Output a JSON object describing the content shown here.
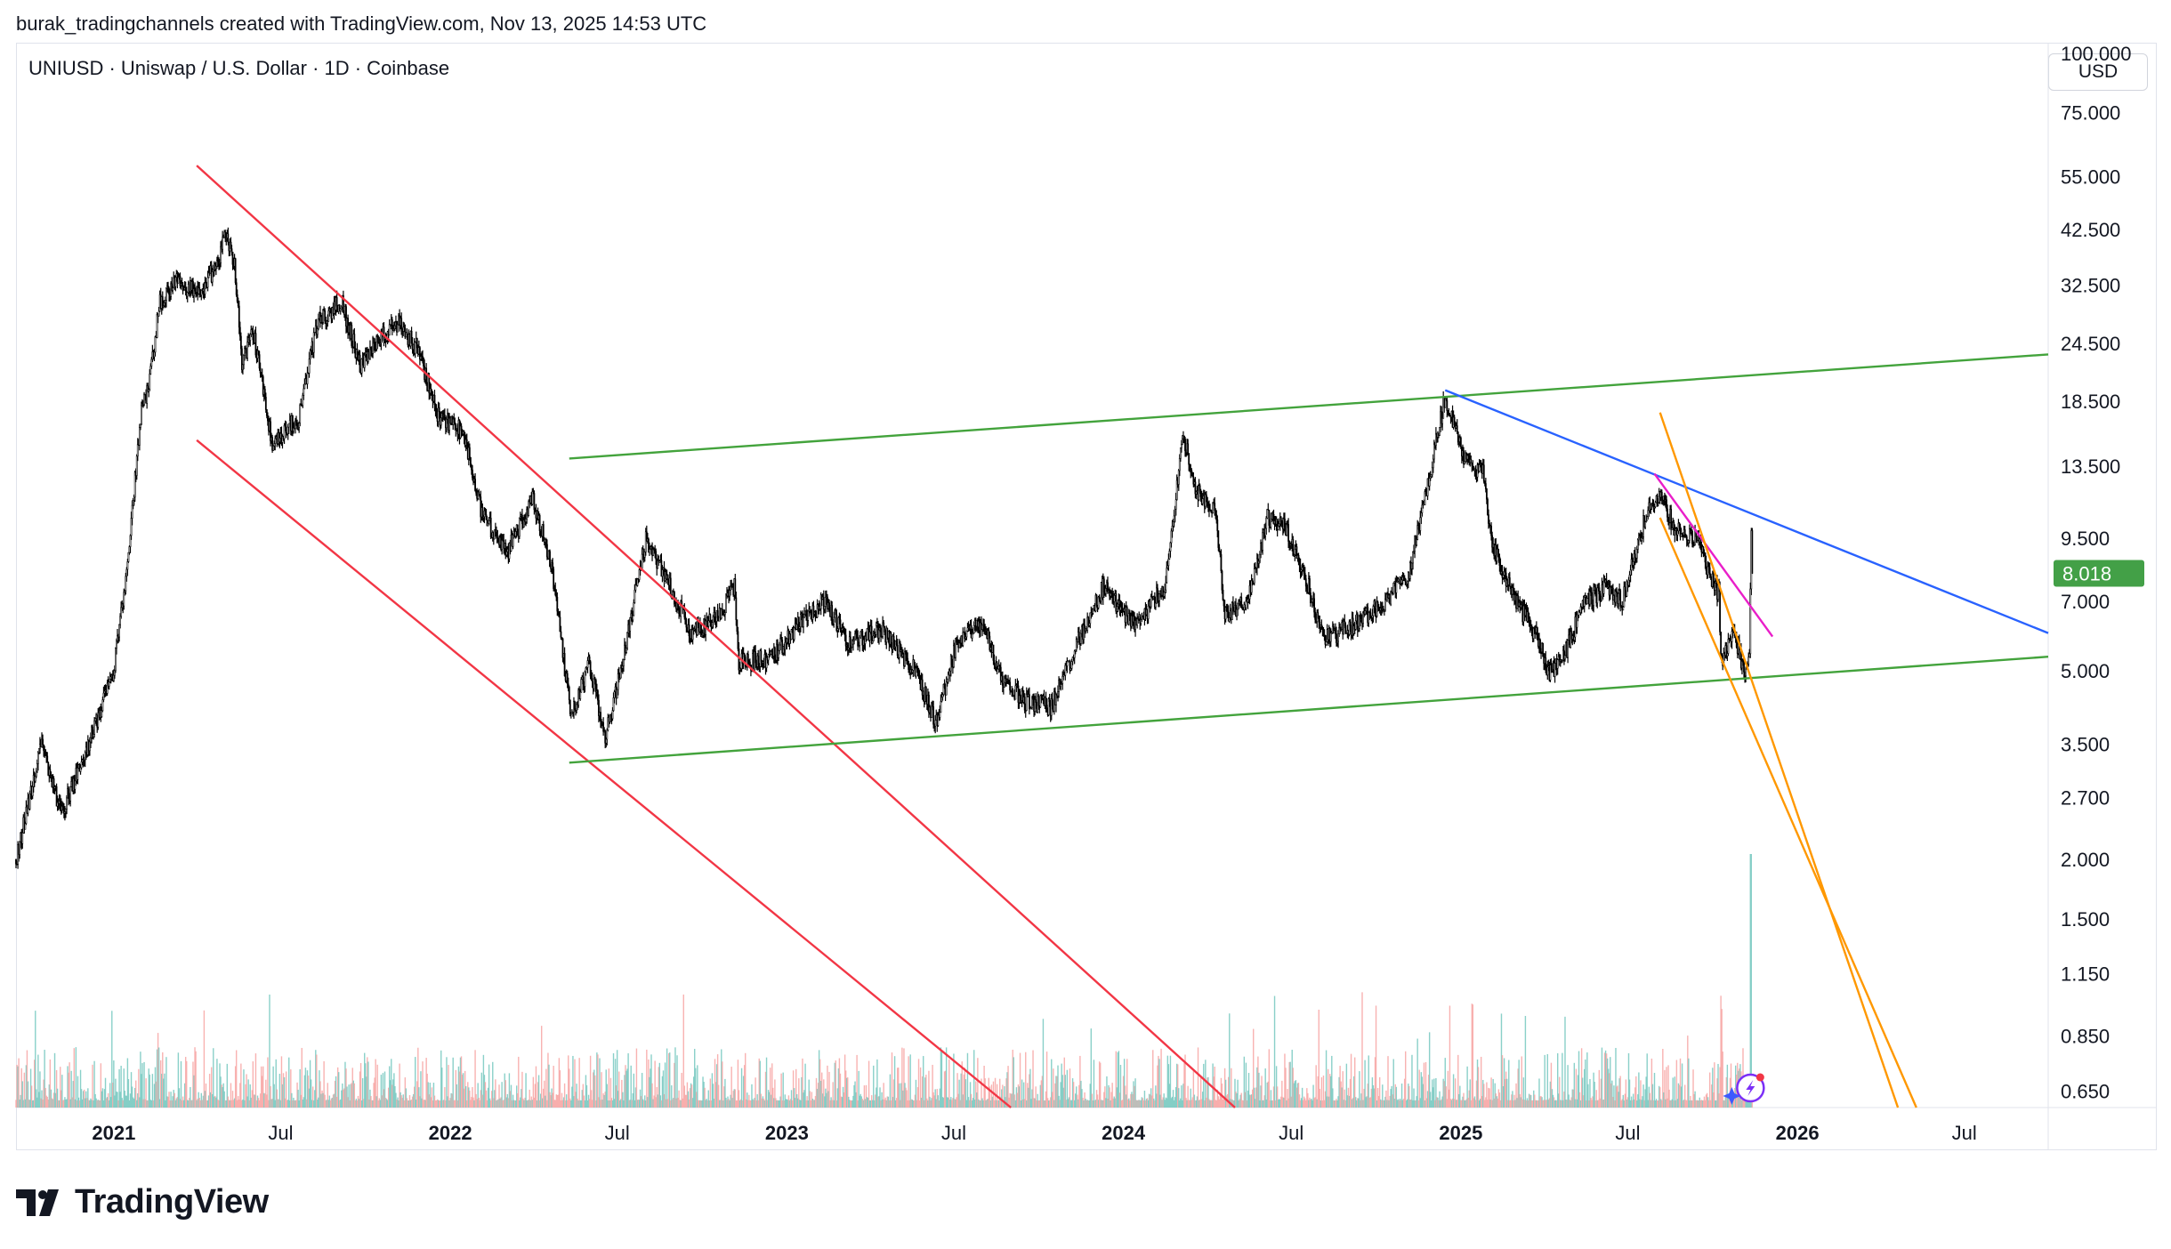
{
  "header": {
    "text": "burak_tradingchannels created with TradingView.com, Nov 13, 2025 14:53 UTC"
  },
  "symbol": {
    "text": "UNIUSD · Uniswap / U.S. Dollar · 1D · Coinbase"
  },
  "currency_button": {
    "label": "USD"
  },
  "brand": {
    "label": "TradingView",
    "icon": "tradingview-logo-icon"
  },
  "colors": {
    "candles": "#000000",
    "grid": "#f0f3fa",
    "red_channel": "#f23645",
    "green_channel": "#43a33c",
    "blue_line": "#2962ff",
    "magenta_line": "#e91ec9",
    "orange_channel": "#ff9800",
    "volume_up": "#76c8c0",
    "volume_down": "#f7a5a3",
    "last_price_bg": "#43a047"
  },
  "chart_data": {
    "type": "candlestick",
    "title": "UNIUSD · Uniswap / U.S. Dollar · 1D · Coinbase",
    "scale": "log",
    "ylim": [
      0.6,
      100
    ],
    "xlim": [
      "2020-09-17",
      "2026-09-30"
    ],
    "y_ticks": [
      "100.000",
      "75.000",
      "55.000",
      "42.500",
      "32.500",
      "24.500",
      "18.500",
      "13.500",
      "9.500",
      "7.000",
      "5.000",
      "3.500",
      "2.700",
      "2.000",
      "1.500",
      "1.150",
      "0.850",
      "0.650"
    ],
    "x_ticks": [
      {
        "label": "2021",
        "date": "2021-01-01",
        "bold": true
      },
      {
        "label": "Jul",
        "date": "2021-07-01",
        "bold": false
      },
      {
        "label": "2022",
        "date": "2022-01-01",
        "bold": true
      },
      {
        "label": "Jul",
        "date": "2022-07-01",
        "bold": false
      },
      {
        "label": "2023",
        "date": "2023-01-01",
        "bold": true
      },
      {
        "label": "Jul",
        "date": "2023-07-01",
        "bold": false
      },
      {
        "label": "2024",
        "date": "2024-01-01",
        "bold": true
      },
      {
        "label": "Jul",
        "date": "2024-07-01",
        "bold": false
      },
      {
        "label": "2025",
        "date": "2025-01-01",
        "bold": true
      },
      {
        "label": "Jul",
        "date": "2025-07-01",
        "bold": false
      },
      {
        "label": "2026",
        "date": "2026-01-01",
        "bold": true
      },
      {
        "label": "Jul",
        "date": "2026-07-01",
        "bold": false
      }
    ],
    "last_price": {
      "label": "8.018",
      "value": 8.018
    },
    "price_path": [
      [
        "2020-09-17",
        2.0
      ],
      [
        "2020-10-15",
        3.5
      ],
      [
        "2020-11-05",
        2.5
      ],
      [
        "2020-12-05",
        3.5
      ],
      [
        "2021-01-01",
        5.0
      ],
      [
        "2021-01-15",
        8.0
      ],
      [
        "2021-01-30",
        17.0
      ],
      [
        "2021-02-10",
        21.0
      ],
      [
        "2021-02-20",
        30.0
      ],
      [
        "2021-03-10",
        33.0
      ],
      [
        "2021-04-05",
        31.0
      ],
      [
        "2021-04-25",
        37.0
      ],
      [
        "2021-05-03",
        42.0
      ],
      [
        "2021-05-12",
        36.0
      ],
      [
        "2021-05-20",
        22.0
      ],
      [
        "2021-06-01",
        26.0
      ],
      [
        "2021-06-22",
        15.0
      ],
      [
        "2021-07-20",
        17.0
      ],
      [
        "2021-08-10",
        27.0
      ],
      [
        "2021-09-05",
        30.0
      ],
      [
        "2021-09-25",
        22.0
      ],
      [
        "2021-10-15",
        25.0
      ],
      [
        "2021-11-05",
        27.0
      ],
      [
        "2021-11-25",
        24.0
      ],
      [
        "2021-12-20",
        17.0
      ],
      [
        "2022-01-15",
        16.0
      ],
      [
        "2022-02-05",
        10.5
      ],
      [
        "2022-03-05",
        9.0
      ],
      [
        "2022-03-31",
        11.5
      ],
      [
        "2022-04-20",
        8.5
      ],
      [
        "2022-05-12",
        4.0
      ],
      [
        "2022-06-01",
        5.2
      ],
      [
        "2022-06-18",
        3.6
      ],
      [
        "2022-07-05",
        5.0
      ],
      [
        "2022-08-01",
        9.5
      ],
      [
        "2022-08-20",
        8.0
      ],
      [
        "2022-09-20",
        6.0
      ],
      [
        "2022-10-20",
        6.5
      ],
      [
        "2022-11-05",
        7.6
      ],
      [
        "2022-11-10",
        5.2
      ],
      [
        "2022-12-15",
        5.3
      ],
      [
        "2023-01-15",
        6.3
      ],
      [
        "2023-02-10",
        7.0
      ],
      [
        "2023-03-10",
        5.7
      ],
      [
        "2023-04-15",
        6.1
      ],
      [
        "2023-05-20",
        5.0
      ],
      [
        "2023-06-12",
        3.9
      ],
      [
        "2023-07-05",
        5.8
      ],
      [
        "2023-08-01",
        6.3
      ],
      [
        "2023-08-20",
        4.9
      ],
      [
        "2023-09-15",
        4.3
      ],
      [
        "2023-10-15",
        4.2
      ],
      [
        "2023-11-15",
        5.9
      ],
      [
        "2023-12-10",
        7.5
      ],
      [
        "2024-01-15",
        6.2
      ],
      [
        "2024-02-15",
        7.6
      ],
      [
        "2024-02-25",
        11.0
      ],
      [
        "2024-03-06",
        15.7
      ],
      [
        "2024-03-20",
        12.0
      ],
      [
        "2024-04-10",
        11.0
      ],
      [
        "2024-04-20",
        6.5
      ],
      [
        "2024-05-15",
        7.0
      ],
      [
        "2024-06-05",
        10.5
      ],
      [
        "2024-06-25",
        10.0
      ],
      [
        "2024-07-20",
        7.5
      ],
      [
        "2024-08-05",
        5.8
      ],
      [
        "2024-09-05",
        6.2
      ],
      [
        "2024-10-10",
        7.0
      ],
      [
        "2024-11-05",
        8.0
      ],
      [
        "2024-11-25",
        12.0
      ],
      [
        "2024-12-15",
        19.0
      ],
      [
        "2025-01-05",
        14.0
      ],
      [
        "2025-01-25",
        13.0
      ],
      [
        "2025-02-05",
        9.0
      ],
      [
        "2025-03-01",
        7.0
      ],
      [
        "2025-03-25",
        5.9
      ],
      [
        "2025-04-07",
        4.9
      ],
      [
        "2025-04-25",
        5.5
      ],
      [
        "2025-05-15",
        7.0
      ],
      [
        "2025-06-10",
        7.5
      ],
      [
        "2025-06-25",
        7.0
      ],
      [
        "2025-07-20",
        10.5
      ],
      [
        "2025-08-05",
        12.0
      ],
      [
        "2025-08-20",
        10.0
      ],
      [
        "2025-09-15",
        9.5
      ],
      [
        "2025-09-28",
        8.0
      ],
      [
        "2025-10-08",
        7.2
      ],
      [
        "2025-10-10",
        5.2
      ],
      [
        "2025-10-25",
        6.0
      ],
      [
        "2025-11-05",
        4.9
      ],
      [
        "2025-11-10",
        5.2
      ],
      [
        "2025-11-12",
        9.8
      ],
      [
        "2025-11-13",
        8.018
      ]
    ],
    "trendlines": [
      {
        "color": "red",
        "from": [
          "2021-04-01",
          58
        ],
        "to": [
          "2024-05-01",
          0.6
        ]
      },
      {
        "color": "red",
        "from": [
          "2021-04-01",
          15.3
        ],
        "to": [
          "2023-09-01",
          0.6
        ]
      },
      {
        "color": "green",
        "from": [
          "2022-05-10",
          14.0
        ],
        "to": [
          "2026-09-30",
          23.2
        ]
      },
      {
        "color": "green",
        "from": [
          "2022-05-10",
          3.2
        ],
        "to": [
          "2026-09-30",
          5.35
        ]
      },
      {
        "color": "blue",
        "from": [
          "2024-12-15",
          19.5
        ],
        "to": [
          "2026-09-30",
          6.0
        ]
      },
      {
        "color": "magenta",
        "from": [
          "2025-07-30",
          13.0
        ],
        "to": [
          "2025-12-05",
          5.9
        ]
      },
      {
        "color": "orange",
        "from": [
          "2025-08-05",
          17.5
        ],
        "to": [
          "2026-04-20",
          0.6
        ]
      },
      {
        "color": "orange",
        "from": [
          "2025-08-05",
          10.5
        ],
        "to": [
          "2026-05-10",
          0.6
        ]
      }
    ]
  }
}
